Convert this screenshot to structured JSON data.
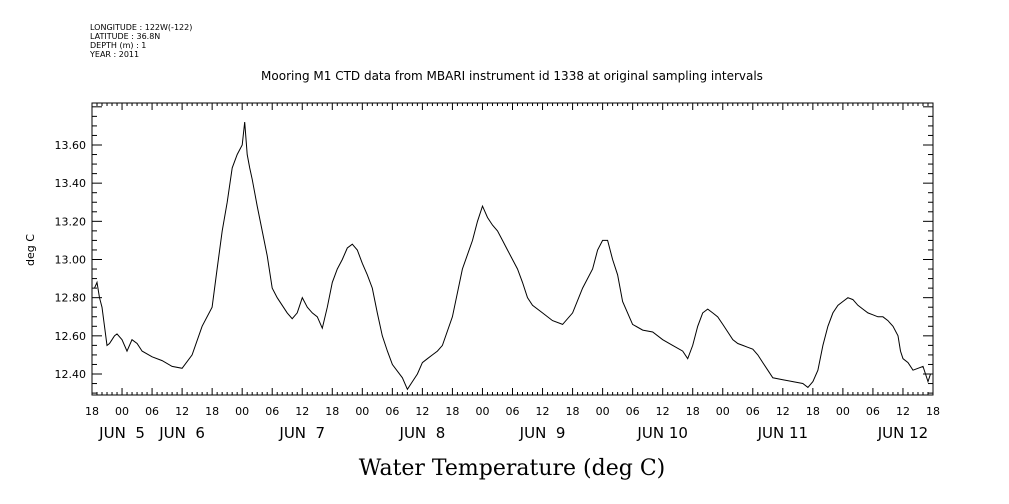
{
  "header": {
    "longitude": "LONGITUDE : 122W(-122)",
    "latitude": "LATITUDE : 36.8N",
    "depth": "DEPTH (m) : 1",
    "year": "YEAR : 2011"
  },
  "chart_data": {
    "type": "line",
    "title": "Mooring M1 CTD data from MBARI instrument id 1338 at original sampling intervals",
    "ylabel": "deg C",
    "xlabel": "Water Temperature (deg C)",
    "ylim": [
      12.29,
      13.82
    ],
    "xlim_hours": [
      -6,
      162
    ],
    "yticks": [
      "12.40",
      "12.60",
      "12.80",
      "13.00",
      "13.20",
      "13.40",
      "13.60"
    ],
    "ytick_values": [
      12.4,
      12.6,
      12.8,
      13.0,
      13.2,
      13.4,
      13.6
    ],
    "hour_tick_labels": [
      "18",
      "00",
      "06",
      "12",
      "18",
      "00",
      "06",
      "12",
      "18",
      "00",
      "06",
      "12",
      "18",
      "00",
      "06",
      "12",
      "18",
      "00",
      "06",
      "12",
      "18",
      "00",
      "06",
      "12",
      "18",
      "00",
      "06",
      "12",
      "18"
    ],
    "day_labels": [
      "JUN  5",
      "JUN  6",
      "JUN  7",
      "JUN  8",
      "JUN  9",
      "JUN 10",
      "JUN 11",
      "JUN 12"
    ],
    "day_label_hours": [
      0,
      12,
      36,
      60,
      84,
      108,
      132,
      156
    ],
    "series": [
      {
        "x": [
          -5.5,
          -5,
          -4.5,
          -4,
          -3.5,
          -3,
          -2.5,
          -2,
          -1.5,
          -1,
          0,
          1,
          2,
          3,
          4,
          6,
          8,
          10,
          12,
          14,
          16,
          18,
          19,
          20,
          21,
          22,
          23,
          24,
          24.5,
          25,
          25.5,
          26,
          26.5,
          27,
          28,
          29,
          30,
          31,
          32,
          33,
          34,
          35,
          36,
          37,
          38,
          39,
          40,
          41,
          42,
          43,
          44,
          45,
          46,
          47,
          48,
          49,
          50,
          51,
          52,
          53,
          54,
          56,
          57,
          58,
          59,
          60,
          61,
          62,
          63,
          64,
          66,
          68,
          70,
          71,
          72,
          73,
          74,
          75,
          76,
          77,
          78,
          79,
          80,
          81,
          82,
          84,
          86,
          88,
          90,
          92,
          94,
          95,
          96,
          97,
          98,
          99,
          100,
          102,
          104,
          106,
          108,
          110,
          112,
          113,
          114,
          115,
          116,
          117,
          118,
          119,
          120,
          121,
          122,
          123,
          124,
          125,
          126,
          127,
          128,
          129,
          130,
          132,
          134,
          136,
          137,
          138,
          139,
          140,
          141,
          142,
          143,
          144,
          145,
          146,
          147,
          148,
          149,
          150,
          151,
          152,
          153,
          154,
          155,
          155.5,
          156,
          157,
          158,
          159,
          160,
          161,
          161.5
        ],
        "y": [
          12.85,
          12.88,
          12.8,
          12.75,
          12.65,
          12.55,
          12.56,
          12.58,
          12.6,
          12.61,
          12.58,
          12.52,
          12.58,
          12.56,
          12.52,
          12.49,
          12.47,
          12.44,
          12.43,
          12.5,
          12.65,
          12.75,
          12.95,
          13.15,
          13.3,
          13.48,
          13.55,
          13.6,
          13.72,
          13.55,
          13.48,
          13.42,
          13.35,
          13.28,
          13.15,
          13.02,
          12.85,
          12.8,
          12.76,
          12.72,
          12.69,
          12.72,
          12.8,
          12.75,
          12.72,
          12.7,
          12.64,
          12.75,
          12.88,
          12.95,
          13.0,
          13.06,
          13.08,
          13.05,
          12.98,
          12.92,
          12.85,
          12.72,
          12.6,
          12.52,
          12.45,
          12.38,
          12.32,
          12.36,
          12.4,
          12.46,
          12.48,
          12.5,
          12.52,
          12.55,
          12.7,
          12.95,
          13.1,
          13.2,
          13.28,
          13.22,
          13.18,
          13.15,
          13.1,
          13.05,
          13.0,
          12.95,
          12.88,
          12.8,
          12.76,
          12.72,
          12.68,
          12.66,
          12.72,
          12.85,
          12.95,
          13.05,
          13.1,
          13.1,
          13.0,
          12.92,
          12.78,
          12.66,
          12.63,
          12.62,
          12.58,
          12.55,
          12.52,
          12.48,
          12.55,
          12.65,
          12.72,
          12.74,
          12.72,
          12.7,
          12.66,
          12.62,
          12.58,
          12.56,
          12.55,
          12.54,
          12.53,
          12.5,
          12.46,
          12.42,
          12.38,
          12.37,
          12.36,
          12.35,
          12.33,
          12.36,
          12.42,
          12.55,
          12.65,
          12.72,
          12.76,
          12.78,
          12.8,
          12.79,
          12.76,
          12.74,
          12.72,
          12.71,
          12.7,
          12.7,
          12.68,
          12.65,
          12.6,
          12.52,
          12.48,
          12.46,
          12.42,
          12.43,
          12.44,
          12.36,
          12.4
        ]
      }
    ]
  }
}
